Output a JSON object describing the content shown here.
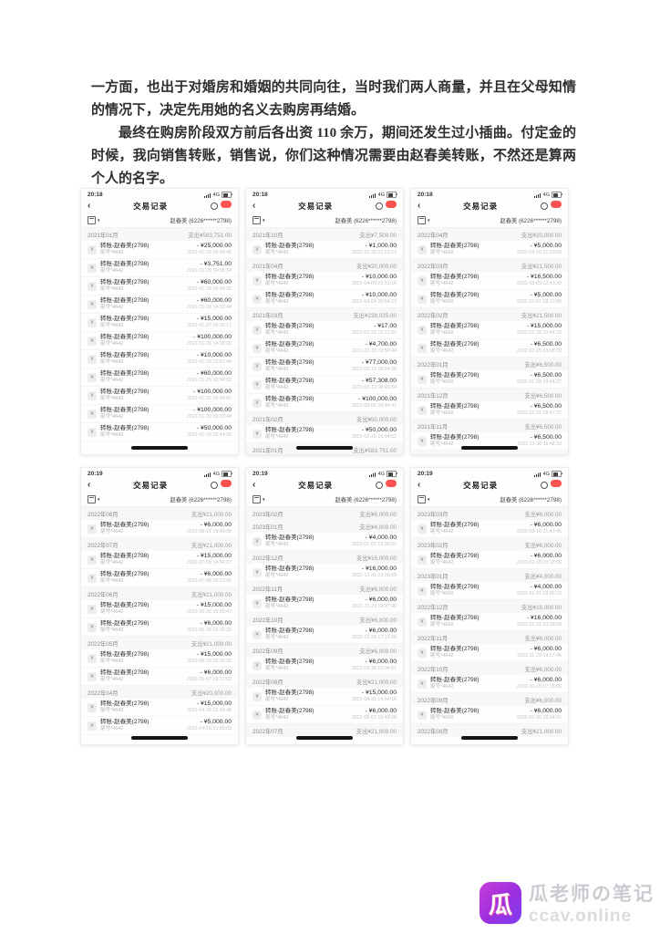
{
  "article": {
    "paragraphs": [
      "一方面，也出于对婚房和婚姻的共同向往，当时我们两人商量，并且在父母知情的情况下，决定先用她的名义去购房再结婚。",
      "最终在购房阶段双方前后各出资 110 余万，期间还发生过小插曲。付定金的时候，我向销售转账，销售说，你们这种情况需要由赵春美转账，不然还是算两个人的名字。"
    ]
  },
  "phone_common": {
    "title": "交易记录",
    "back_icon": "‹",
    "network": "4G",
    "account": "赵春美 (6226******2798)",
    "filter_caret": "▾",
    "tx_name": "转账-赵春美(2798)",
    "tx_sub": "尾号*4642",
    "tx_icon_glyph": "¥",
    "badge_color": "#fa5151"
  },
  "phones": [
    {
      "time": "20:18",
      "items": [
        {
          "type": "month",
          "label": "2021年01月",
          "total": "支出¥583,751.00"
        },
        {
          "type": "tx",
          "amount": "- ¥25,000.00",
          "date": "2021-01-29 16:46:46"
        },
        {
          "type": "tx",
          "amount": "- ¥3,751.00",
          "date": "2021-01-29 14:06:34"
        },
        {
          "type": "tx",
          "amount": "- ¥60,000.00",
          "date": "2021-01-28 16:46:28"
        },
        {
          "type": "tx",
          "amount": "- ¥60,000.00",
          "date": "2021-01-28 14:01:48"
        },
        {
          "type": "tx",
          "amount": "- ¥15,000.00",
          "date": "2021-01-27 16:30:17"
        },
        {
          "type": "tx",
          "amount": "- ¥100,000.00",
          "date": "2021-01-26 14:06:05"
        },
        {
          "type": "tx",
          "amount": "- ¥10,000.00",
          "date": "2021-01-25 12:57:44"
        },
        {
          "type": "tx",
          "amount": "- ¥60,000.00",
          "date": "2021-01-25 10:04:52"
        },
        {
          "type": "tx",
          "amount": "- ¥100,000.00",
          "date": "2021-01-21 09:45:07"
        },
        {
          "type": "tx",
          "amount": "- ¥100,000.00",
          "date": "2021-01-20 09:03:48"
        },
        {
          "type": "tx",
          "amount": "- ¥50,000.00",
          "date": "2021-01-15 15:44:36"
        }
      ]
    },
    {
      "time": "20:18",
      "items": [
        {
          "type": "month",
          "label": "2021年10月",
          "total": "支出¥7,500.00"
        },
        {
          "type": "tx",
          "amount": "- ¥1,000.00",
          "date": "2021-10-30 21:53:13"
        },
        {
          "type": "month",
          "label": "2021年04月",
          "total": "支出¥20,000.00"
        },
        {
          "type": "tx",
          "amount": "- ¥10,000.00",
          "date": "2021-04-05 21:51:16"
        },
        {
          "type": "tx",
          "amount": "- ¥10,000.00",
          "date": "2021-04-04 20:54:23"
        },
        {
          "type": "month",
          "label": "2021年03月",
          "total": "支出¥239,025.00"
        },
        {
          "type": "tx",
          "amount": "- ¥17.00",
          "date": "2021-03-20 15:21:02"
        },
        {
          "type": "tx",
          "amount": "- ¥4,700.00",
          "date": "2021-03-18 09:58:44"
        },
        {
          "type": "tx",
          "amount": "- ¥77,000.00",
          "date": "2021-03-16 16:54:28"
        },
        {
          "type": "tx",
          "amount": "- ¥57,308.00",
          "date": "2021-03-12 08:46:54"
        },
        {
          "type": "tx",
          "amount": "- ¥100,000.00",
          "date": "2021-03-05 09:46:47"
        },
        {
          "type": "month",
          "label": "2021年02月",
          "total": "支出¥50,000.00"
        },
        {
          "type": "tx",
          "amount": "- ¥50,000.00",
          "date": "2021-02-26 16:04:52"
        },
        {
          "type": "month",
          "label": "2021年01月",
          "total": "支出¥583,751.00"
        }
      ]
    },
    {
      "time": "20:18",
      "items": [
        {
          "type": "month",
          "label": "2022年04月",
          "total": "支出¥20,000.00"
        },
        {
          "type": "tx",
          "amount": "- ¥5,000.00",
          "date": "2022-04-10 21:59:03"
        },
        {
          "type": "month",
          "label": "2022年03月",
          "total": "支出¥21,500.00"
        },
        {
          "type": "tx",
          "amount": "- ¥16,500.00",
          "date": "2022-03-09 12:43:39"
        },
        {
          "type": "tx",
          "amount": "- ¥5,000.00",
          "date": "2022-03-07 18:10:05"
        },
        {
          "type": "month",
          "label": "2022年02月",
          "total": "支出¥21,500.00"
        },
        {
          "type": "tx",
          "amount": "- ¥15,000.00",
          "date": "2022-02-28 10:44:23"
        },
        {
          "type": "tx",
          "amount": "- ¥6,500.00",
          "date": "2022-02-25 14:08:19"
        },
        {
          "type": "month",
          "label": "2022年01月",
          "total": "支出¥6,500.00"
        },
        {
          "type": "tx",
          "amount": "- ¥6,500.00",
          "date": "2022-01-28 14:44:27"
        },
        {
          "type": "month",
          "label": "2021年12月",
          "total": "支出¥6,500.00"
        },
        {
          "type": "tx",
          "amount": "- ¥6,500.00",
          "date": "2021-12-31 18:47:27"
        },
        {
          "type": "month",
          "label": "2021年11月",
          "total": "支出¥6,500.00"
        },
        {
          "type": "tx",
          "amount": "- ¥6,500.00",
          "date": "2021-11-30 11:48:33"
        },
        {
          "type": "month",
          "label": "2021年10月",
          "total": "支出¥7,500.00"
        }
      ]
    },
    {
      "time": "20:19",
      "items": [
        {
          "type": "month",
          "label": "2022年08月",
          "total": "支出¥21,000.00"
        },
        {
          "type": "tx",
          "amount": "- ¥6,000.00",
          "date": "2022-08-07 19:49:08"
        },
        {
          "type": "month",
          "label": "2022年07月",
          "total": "支出¥21,000.00"
        },
        {
          "type": "tx",
          "amount": "- ¥15,000.00",
          "date": "2022-07-09 14:54:27"
        },
        {
          "type": "tx",
          "amount": "- ¥6,000.00",
          "date": "2022-07-08 19:27:06"
        },
        {
          "type": "month",
          "label": "2022年06月",
          "total": "支出¥21,000.00"
        },
        {
          "type": "tx",
          "amount": "- ¥15,000.00",
          "date": "2022-06-30 16:59:47"
        },
        {
          "type": "tx",
          "amount": "- ¥6,000.00",
          "date": "2022-06-29 19:15:29"
        },
        {
          "type": "month",
          "label": "2022年05月",
          "total": "支出¥21,000.00"
        },
        {
          "type": "tx",
          "amount": "- ¥15,000.00",
          "date": "2022-05-29 15:16:28"
        },
        {
          "type": "tx",
          "amount": "- ¥6,000.00",
          "date": "2022-05-07 19:17:02"
        },
        {
          "type": "month",
          "label": "2022年04月",
          "total": "支出¥20,000.00"
        },
        {
          "type": "tx",
          "amount": "- ¥15,000.00",
          "date": "2022-04-28 15:40:48"
        },
        {
          "type": "tx",
          "amount": "- ¥5,000.00",
          "date": "2022-04-10 21:59:03"
        }
      ]
    },
    {
      "time": "20:19",
      "items": [
        {
          "type": "month",
          "label": "2023年02月",
          "total": "支出¥6,000.00"
        },
        {
          "type": "month",
          "label": "2023年01月",
          "total": "支出¥4,000.00"
        },
        {
          "type": "tx",
          "amount": "- ¥4,000.00",
          "date": "2023-01-07 19:00:22"
        },
        {
          "type": "month",
          "label": "2022年12月",
          "total": "支出¥16,000.00"
        },
        {
          "type": "tx",
          "amount": "- ¥16,000.00",
          "date": "2022-12-31 03:28:59"
        },
        {
          "type": "month",
          "label": "2022年11月",
          "total": "支出¥6,000.00"
        },
        {
          "type": "tx",
          "amount": "- ¥6,000.00",
          "date": "2022-11-29 14:27:46"
        },
        {
          "type": "month",
          "label": "2022年10月",
          "total": "支出¥6,000.00"
        },
        {
          "type": "tx",
          "amount": "- ¥6,000.00",
          "date": "2022-10-28 17:15:06"
        },
        {
          "type": "month",
          "label": "2022年09月",
          "total": "支出¥6,000.00"
        },
        {
          "type": "tx",
          "amount": "- ¥6,000.00",
          "date": "2022-09-30 16:04:51"
        },
        {
          "type": "month",
          "label": "2022年08月",
          "total": "支出¥21,000.00"
        },
        {
          "type": "tx",
          "amount": "- ¥15,000.00",
          "date": "2022-08-31 14:54:16"
        },
        {
          "type": "tx",
          "amount": "- ¥6,000.00",
          "date": "2022-08-07 19:49:08"
        },
        {
          "type": "month",
          "label": "2022年07月",
          "total": "支出¥21,000.00"
        }
      ]
    },
    {
      "time": "20:19",
      "items": [
        {
          "type": "month",
          "label": "2023年03月",
          "total": "支出¥6,000.00"
        },
        {
          "type": "tx",
          "amount": "- ¥6,000.00",
          "date": "2023-03-10 21:43:45"
        },
        {
          "type": "month",
          "label": "2023年02月",
          "total": "支出¥6,000.00"
        },
        {
          "type": "tx",
          "amount": "- ¥6,000.00",
          "date": "2023-02-28 23:18:56"
        },
        {
          "type": "month",
          "label": "2023年01月",
          "total": "支出¥4,000.00"
        },
        {
          "type": "tx",
          "amount": "- ¥4,000.00",
          "date": "2023-01-07 19:00:22"
        },
        {
          "type": "month",
          "label": "2022年12月",
          "total": "支出¥16,000.00"
        },
        {
          "type": "tx",
          "amount": "- ¥16,000.00",
          "date": "2022-12-31 03:28:59"
        },
        {
          "type": "month",
          "label": "2022年11月",
          "total": "支出¥6,000.00"
        },
        {
          "type": "tx",
          "amount": "- ¥6,000.00",
          "date": "2022-11-29 14:27:46"
        },
        {
          "type": "month",
          "label": "2022年10月",
          "total": "支出¥6,000.00"
        },
        {
          "type": "tx",
          "amount": "- ¥6,000.00",
          "date": "2022-10-28 17:15:06"
        },
        {
          "type": "month",
          "label": "2022年09月",
          "total": "支出¥6,000.00"
        },
        {
          "type": "tx",
          "amount": "- ¥6,000.00",
          "date": "2022-09-30 16:04:51"
        },
        {
          "type": "month",
          "label": "2022年08月",
          "total": "支出¥21,000.00"
        }
      ]
    }
  ],
  "watermark": {
    "logo_char": "瓜",
    "name": "瓜老师の笔记",
    "site": "ccav.online"
  }
}
